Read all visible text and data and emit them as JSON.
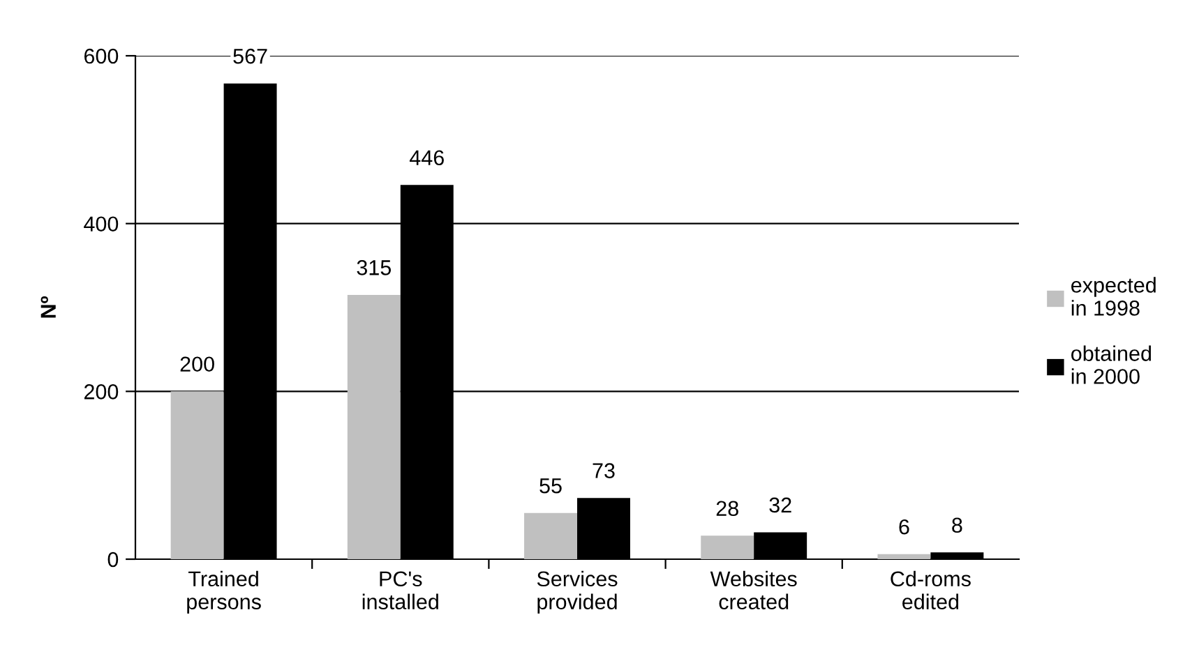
{
  "chart_data": {
    "type": "bar",
    "ylabel": "Nº",
    "categories": [
      "Trained\npersons",
      "PC's\ninstalled",
      "Services\nprovided",
      "Websites\ncreated",
      "Cd-roms\nedited"
    ],
    "series": [
      {
        "name": "expected\nin 1998",
        "color": "#c0c0c0",
        "values": [
          200,
          315,
          55,
          28,
          6
        ]
      },
      {
        "name": "obtained\nin 2000",
        "color": "#000000",
        "values": [
          567,
          446,
          73,
          32,
          8
        ]
      }
    ],
    "ylim": [
      0,
      600
    ],
    "yticks": [
      0,
      200,
      400,
      600
    ],
    "grid": "y",
    "legend": "right",
    "data_labels": true
  }
}
